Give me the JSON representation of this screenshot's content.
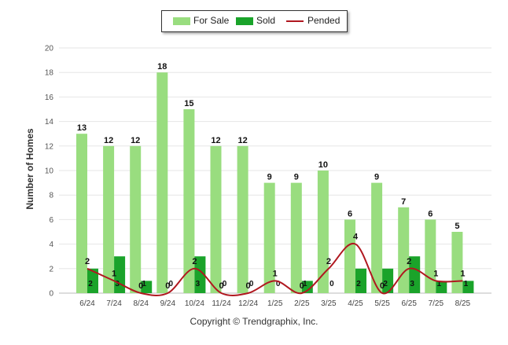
{
  "chart_data": {
    "type": "bar",
    "title": "",
    "xlabel": "",
    "ylabel": "Number of Homes",
    "ylim": [
      0,
      20
    ],
    "yticks": [
      0,
      2,
      4,
      6,
      8,
      10,
      12,
      14,
      16,
      18,
      20
    ],
    "categories": [
      "6/24",
      "7/24",
      "8/24",
      "9/24",
      "10/24",
      "11/24",
      "12/24",
      "1/25",
      "2/25",
      "3/25",
      "4/25",
      "5/25",
      "6/25",
      "7/25",
      "8/25"
    ],
    "series": [
      {
        "name": "For Sale",
        "kind": "bar",
        "color": "#99dd7f",
        "values": [
          13,
          12,
          12,
          18,
          15,
          12,
          12,
          9,
          9,
          10,
          6,
          9,
          7,
          6,
          5
        ]
      },
      {
        "name": "Sold",
        "kind": "bar",
        "color": "#1aa32a",
        "values": [
          2,
          3,
          1,
          0,
          3,
          0,
          0,
          0,
          1,
          0,
          2,
          2,
          3,
          1,
          1
        ]
      },
      {
        "name": "Pended",
        "kind": "line",
        "color": "#b0171f",
        "values": [
          2,
          1,
          0,
          0,
          2,
          0,
          0,
          1,
          0,
          2,
          4,
          0,
          2,
          1,
          1
        ]
      }
    ],
    "grid": true,
    "legend_position": "top-center"
  },
  "footer": "Copyright © Trendgraphix, Inc."
}
